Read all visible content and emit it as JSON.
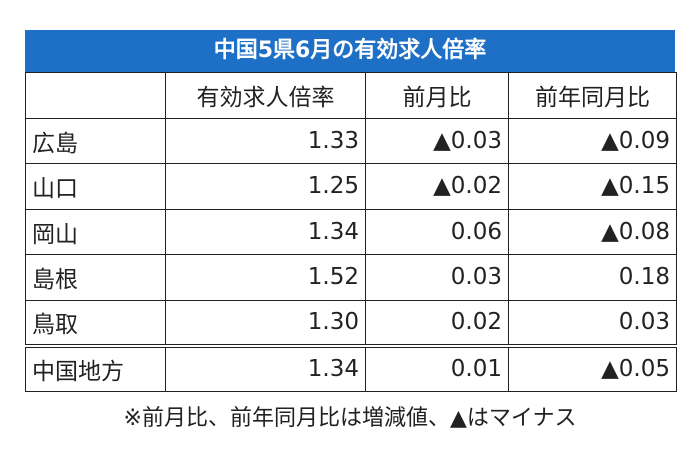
{
  "title": "中国5県6月の有効求人倍率",
  "table": {
    "header": [
      "有効求人倍率",
      "前月比",
      "前年同月比"
    ],
    "rows": [
      [
        "広島",
        "1.33",
        "▲0.03",
        "▲0.09"
      ],
      [
        "山口",
        "1.25",
        "▲0.02",
        "▲0.15"
      ],
      [
        "岡山",
        "1.34",
        "0.06",
        "▲0.08"
      ],
      [
        "島根",
        "1.52",
        "0.03",
        "0.18"
      ],
      [
        "鳥取",
        "1.30",
        "0.02",
        "0.03"
      ],
      [
        "中国地方",
        "1.34",
        "0.01",
        "▲0.05"
      ]
    ]
  },
  "footnote": "※前月比、前年同月比は増減値、▲はマイナス"
}
